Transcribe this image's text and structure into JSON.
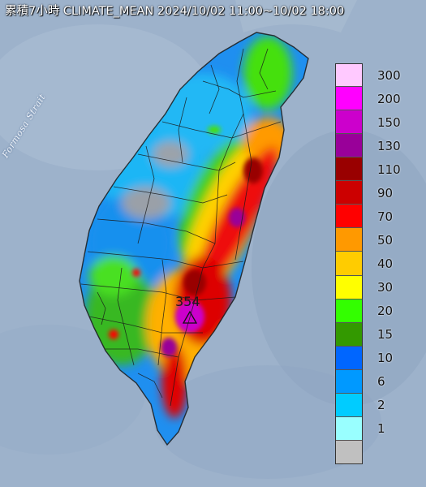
{
  "title": "累積7小時 CLIMATE_MEAN 2024/10/02 11:00~10/02 18:00",
  "strait_label": "Formosa Strait",
  "peak_value": "354",
  "peak_marker_icon": "triangle-marker-icon",
  "legend": {
    "items": [
      {
        "label": "300",
        "color": "#ffc9ff"
      },
      {
        "label": "200",
        "color": "#ff00ff"
      },
      {
        "label": "150",
        "color": "#cc00cc"
      },
      {
        "label": "130",
        "color": "#990099"
      },
      {
        "label": "110",
        "color": "#990000"
      },
      {
        "label": "90",
        "color": "#cc0000"
      },
      {
        "label": "70",
        "color": "#ff0000"
      },
      {
        "label": "50",
        "color": "#ff9900"
      },
      {
        "label": "40",
        "color": "#ffcc00"
      },
      {
        "label": "30",
        "color": "#ffff00"
      },
      {
        "label": "20",
        "color": "#33ff00"
      },
      {
        "label": "15",
        "color": "#339900"
      },
      {
        "label": "10",
        "color": "#0066ff"
      },
      {
        "label": "6",
        "color": "#0099ff"
      },
      {
        "label": "2",
        "color": "#00ccff"
      },
      {
        "label": "1",
        "color": "#99ffff"
      },
      {
        "label": "",
        "color": "#c0c0c0"
      }
    ]
  },
  "colors": {
    "sea": "#9db2cb",
    "island_base": "#3aa0e8",
    "boundary": "#1a1a1a"
  }
}
